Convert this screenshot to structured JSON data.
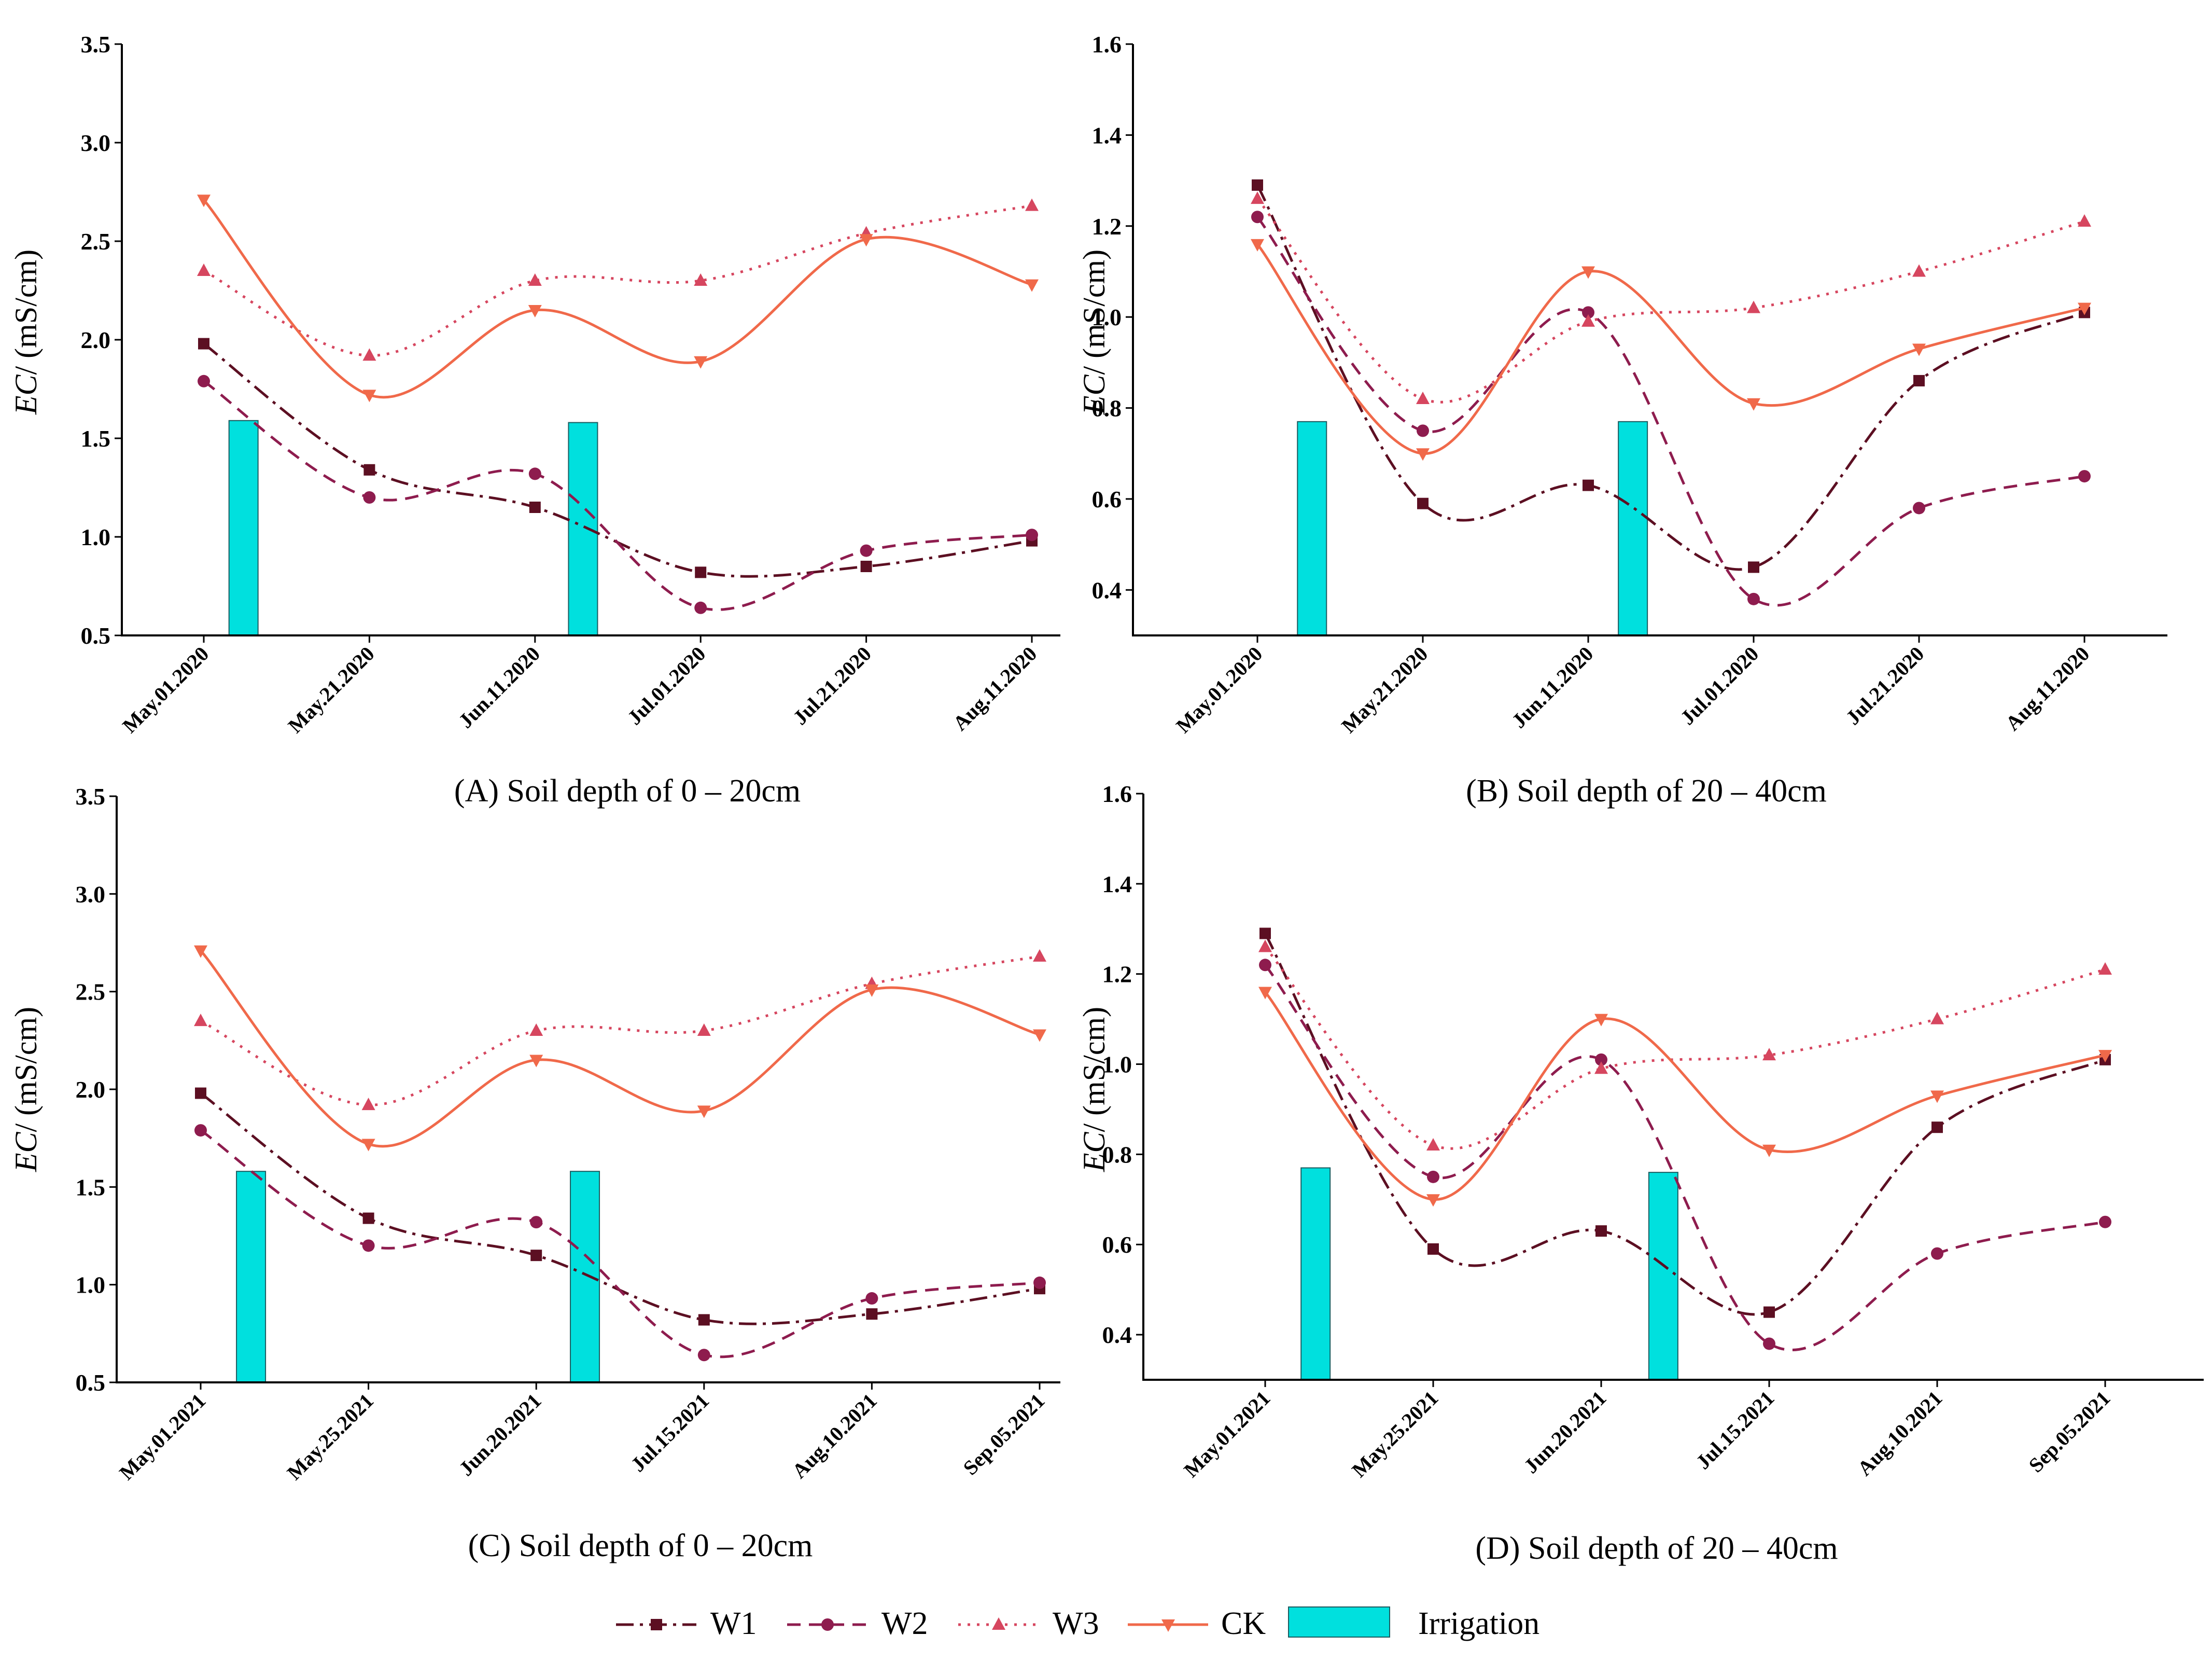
{
  "figure": {
    "legend": {
      "W1": "W1",
      "W2": "W2",
      "W3": "W3",
      "CK": "CK",
      "irrigation": "Irrigation"
    }
  },
  "styles": {
    "W1": {
      "color": "#5c0f22",
      "dash": "34 12 6 12",
      "marker": "square"
    },
    "W2": {
      "color": "#8e1c4e",
      "dash": "26 16",
      "marker": "circle"
    },
    "W3": {
      "color": "#d6465f",
      "dash": "5 13",
      "marker": "triangle-up"
    },
    "CK": {
      "color": "#f0694a",
      "dash": "",
      "marker": "triangle-down"
    },
    "irrigation": {
      "color": "#00e0de",
      "stroke": "#1b5c60"
    }
  },
  "chart_data": [
    {
      "id": "A",
      "type": "line",
      "caption": "(A) Soil depth of 0 – 20cm",
      "ylabel_italic": "EC",
      "ylabel_rest": "/ (mS/cm)",
      "ylim": [
        0.5,
        3.5
      ],
      "yticks": [
        "0.5",
        "1.0",
        "1.5",
        "2.0",
        "2.5",
        "3.0",
        "3.5"
      ],
      "categories": [
        "May.01.2020",
        "May.21.2020",
        "Jun.11.2020",
        "Jul.01.2020",
        "Jul.21.2020",
        "Aug.11.2020"
      ],
      "series": [
        {
          "name": "W1",
          "values": [
            1.98,
            1.34,
            1.15,
            0.82,
            0.85,
            0.98
          ]
        },
        {
          "name": "W2",
          "values": [
            1.79,
            1.2,
            1.32,
            0.64,
            0.93,
            1.01
          ]
        },
        {
          "name": "W3",
          "values": [
            2.35,
            1.92,
            2.3,
            2.3,
            2.54,
            2.68
          ]
        },
        {
          "name": "CK",
          "values": [
            2.71,
            1.72,
            2.15,
            1.89,
            2.51,
            2.28
          ]
        }
      ],
      "irrigation": [
        {
          "x": 0.24,
          "value": 1.59
        },
        {
          "x": 2.29,
          "value": 1.58
        }
      ]
    },
    {
      "id": "B",
      "type": "line",
      "caption": "(B) Soil depth of 20 – 40cm",
      "ylabel_italic": "EC",
      "ylabel_rest": "/ (mS/cm)",
      "ylim": [
        0.3,
        1.6
      ],
      "yticks": [
        "0.4",
        "0.6",
        "0.8",
        "1.0",
        "1.2",
        "1.4",
        "1.6"
      ],
      "categories": [
        "May.01.2020",
        "May.21.2020",
        "Jun.11.2020",
        "Jul.01.2020",
        "Jul.21.2020",
        "Aug.11.2020"
      ],
      "series": [
        {
          "name": "W1",
          "values": [
            1.29,
            0.59,
            0.63,
            0.45,
            0.86,
            1.01
          ]
        },
        {
          "name": "W2",
          "values": [
            1.22,
            0.75,
            1.01,
            0.38,
            0.58,
            0.65
          ]
        },
        {
          "name": "W3",
          "values": [
            1.26,
            0.82,
            0.99,
            1.02,
            1.1,
            1.21
          ]
        },
        {
          "name": "CK",
          "values": [
            1.16,
            0.7,
            1.1,
            0.81,
            0.93,
            1.02
          ]
        }
      ],
      "irrigation": [
        {
          "x": 0.33,
          "value": 0.77
        },
        {
          "x": 2.27,
          "value": 0.77
        }
      ]
    },
    {
      "id": "C",
      "type": "line",
      "caption": "(C) Soil depth of 0 – 20cm",
      "ylabel_italic": "EC",
      "ylabel_rest": "/ (mS/cm)",
      "ylim": [
        0.5,
        3.5
      ],
      "yticks": [
        "0.5",
        "1.0",
        "1.5",
        "2.0",
        "2.5",
        "3.0",
        "3.5"
      ],
      "categories": [
        "May.01.2021",
        "May.25.2021",
        "Jun.20.2021",
        "Jul.15.2021",
        "Aug.10.2021",
        "Sep.05.2021"
      ],
      "series": [
        {
          "name": "W1",
          "values": [
            1.98,
            1.34,
            1.15,
            0.82,
            0.85,
            0.98
          ]
        },
        {
          "name": "W2",
          "values": [
            1.79,
            1.2,
            1.32,
            0.64,
            0.93,
            1.01
          ]
        },
        {
          "name": "W3",
          "values": [
            2.35,
            1.92,
            2.3,
            2.3,
            2.54,
            2.68
          ]
        },
        {
          "name": "CK",
          "values": [
            2.71,
            1.72,
            2.15,
            1.89,
            2.51,
            2.28
          ]
        }
      ],
      "irrigation": [
        {
          "x": 0.3,
          "value": 1.58
        },
        {
          "x": 2.29,
          "value": 1.58
        }
      ]
    },
    {
      "id": "D",
      "type": "line",
      "caption": "(D) Soil depth of 20 – 40cm",
      "ylabel_italic": "EC",
      "ylabel_rest": "/ (mS/cm)",
      "ylim": [
        0.3,
        1.6
      ],
      "yticks": [
        "0.4",
        "0.6",
        "0.8",
        "1.0",
        "1.2",
        "1.4",
        "1.6"
      ],
      "categories": [
        "May.01.2021",
        "May.25.2021",
        "Jun.20.2021",
        "Jul.15.2021",
        "Aug.10.2021",
        "Sep.05.2021"
      ],
      "series": [
        {
          "name": "W1",
          "values": [
            1.29,
            0.59,
            0.63,
            0.45,
            0.86,
            1.01
          ]
        },
        {
          "name": "W2",
          "values": [
            1.22,
            0.75,
            1.01,
            0.38,
            0.58,
            0.65
          ]
        },
        {
          "name": "W3",
          "values": [
            1.26,
            0.82,
            0.99,
            1.02,
            1.1,
            1.21
          ]
        },
        {
          "name": "CK",
          "values": [
            1.16,
            0.7,
            1.1,
            0.81,
            0.93,
            1.02
          ]
        }
      ],
      "irrigation": [
        {
          "x": 0.3,
          "value": 0.77
        },
        {
          "x": 2.37,
          "value": 0.76
        }
      ]
    }
  ]
}
